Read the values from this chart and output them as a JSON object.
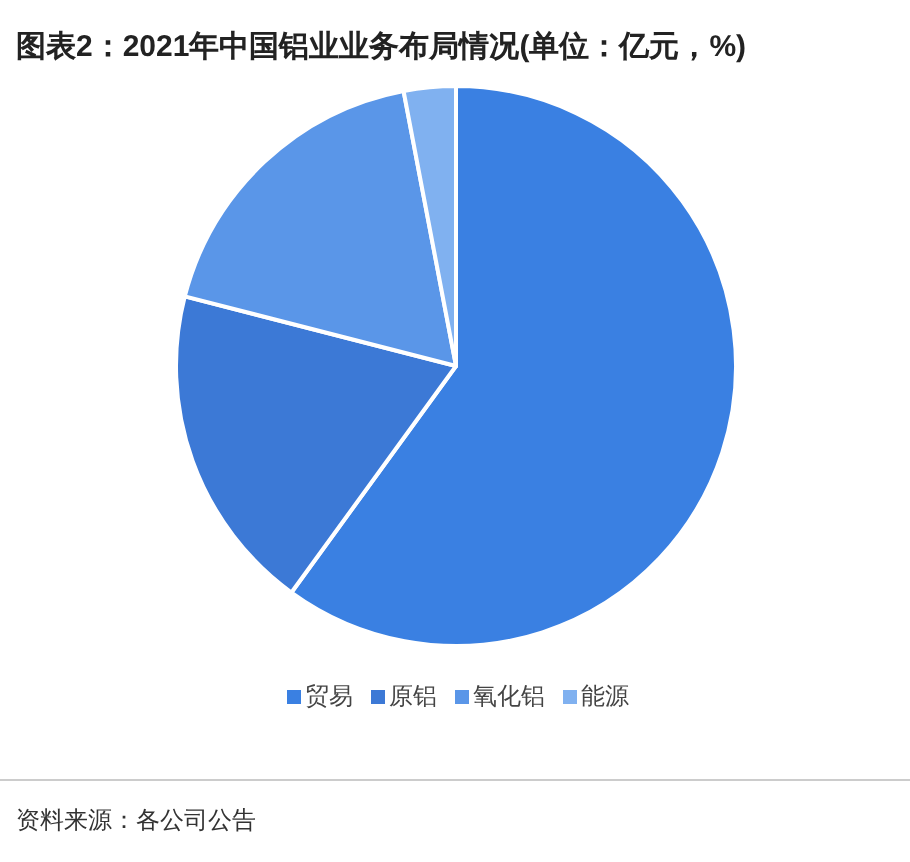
{
  "chart_data": {
    "type": "pie",
    "title": "图表2：2021年中国铝业业务布局情况(单位：亿元，%)",
    "categories": [
      "贸易",
      "原铝",
      "氧化铝",
      "能源"
    ],
    "values": [
      60,
      19,
      18,
      3
    ],
    "colors": [
      "#3a80e2",
      "#3c79d6",
      "#5a96e8",
      "#80b1f0"
    ],
    "legend": "bottom",
    "annotations": [
      "资料来源：各公司公告"
    ]
  }
}
